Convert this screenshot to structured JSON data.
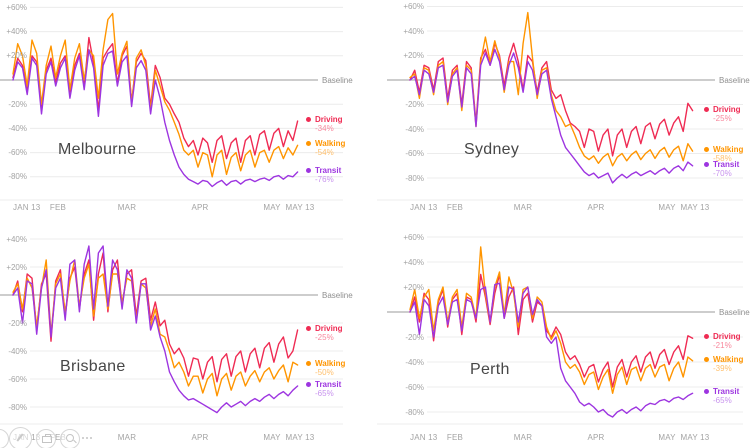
{
  "page": {
    "background": "#ffffff"
  },
  "colors": {
    "driving": "#ef2b53",
    "walking": "#ff9500",
    "transit": "#9d35e0",
    "driving_light": "#f8889d",
    "walking_light": "#ffc06d",
    "transit_light": "#c893ee",
    "baseline_line": "#9b9b9b",
    "gridline": "#ececec",
    "axis_text": "#a3a3a3",
    "city_label": "#474747"
  },
  "icons": {
    "toolbar": [
      "share-icon",
      "print-icon",
      "search-icon",
      "more-icon"
    ]
  },
  "chart_data": [
    {
      "city": "Melbourne",
      "type": "line",
      "x_start": "JAN 13",
      "x_end": "MAY 13",
      "sample_interval_days": 2,
      "ylim": [
        -99,
        63
      ],
      "baseline": 0,
      "baseline_label": "Baseline",
      "y_ticks": [
        {
          "value": 60,
          "label": "+60%"
        },
        {
          "value": 40,
          "label": "+40%"
        },
        {
          "value": 20,
          "label": "+20%"
        },
        {
          "value": -20,
          "label": "-20%"
        },
        {
          "value": -40,
          "label": "-40%"
        },
        {
          "value": -60,
          "label": "-60%"
        },
        {
          "value": -80,
          "label": "-80%"
        }
      ],
      "x_ticks": [
        {
          "day": 0,
          "label": "JAN 13"
        },
        {
          "day": 19,
          "label": "FEB"
        },
        {
          "day": 48,
          "label": "MAR"
        },
        {
          "day": 79,
          "label": "APR"
        },
        {
          "day": 109,
          "label": "MAY"
        },
        {
          "day": 121,
          "label": "MAY 13"
        }
      ],
      "series": [
        {
          "name": "Driving",
          "latest": "-34%",
          "values": [
            2,
            18,
            12,
            -8,
            20,
            15,
            -24,
            8,
            18,
            -2,
            14,
            20,
            -10,
            12,
            22,
            -5,
            35,
            14,
            -25,
            18,
            25,
            30,
            -3,
            20,
            28,
            -18,
            15,
            22,
            16,
            -22,
            12,
            2,
            -15,
            -20,
            -28,
            -35,
            -48,
            -55,
            -50,
            -62,
            -48,
            -52,
            -68,
            -50,
            -46,
            -65,
            -52,
            -48,
            -68,
            -50,
            -46,
            -62,
            -45,
            -42,
            -58,
            -44,
            -40,
            -55,
            -42,
            -50,
            -34
          ]
        },
        {
          "name": "Walking",
          "latest": "-54%",
          "values": [
            5,
            30,
            20,
            -5,
            33,
            22,
            -20,
            12,
            28,
            2,
            20,
            33,
            -8,
            18,
            30,
            0,
            25,
            20,
            -15,
            25,
            50,
            55,
            5,
            22,
            32,
            -20,
            18,
            25,
            12,
            -25,
            8,
            -5,
            -18,
            -25,
            -35,
            -45,
            -58,
            -62,
            -58,
            -72,
            -60,
            -62,
            -80,
            -62,
            -58,
            -78,
            -64,
            -60,
            -75,
            -62,
            -58,
            -72,
            -60,
            -58,
            -68,
            -58,
            -55,
            -65,
            -56,
            -62,
            -54
          ]
        },
        {
          "name": "Transit",
          "latest": "-76%",
          "values": [
            0,
            15,
            10,
            -12,
            18,
            12,
            -28,
            5,
            15,
            -5,
            10,
            18,
            -15,
            8,
            20,
            -8,
            25,
            10,
            -30,
            12,
            22,
            24,
            -5,
            15,
            20,
            -22,
            10,
            16,
            8,
            -28,
            0,
            -15,
            -35,
            -50,
            -62,
            -72,
            -78,
            -82,
            -84,
            -86,
            -83,
            -84,
            -88,
            -85,
            -83,
            -87,
            -84,
            -83,
            -86,
            -83,
            -82,
            -84,
            -82,
            -81,
            -83,
            -80,
            -79,
            -82,
            -79,
            -80,
            -76
          ]
        }
      ]
    },
    {
      "city": "Sydney",
      "type": "line",
      "x_start": "JAN 13",
      "x_end": "MAY 13",
      "sample_interval_days": 2,
      "ylim": [
        -99,
        63
      ],
      "baseline": 0,
      "baseline_label": "Baseline",
      "y_ticks": [
        {
          "value": 60,
          "label": "+60%"
        },
        {
          "value": 40,
          "label": "+40%"
        },
        {
          "value": 20,
          "label": "+20%"
        },
        {
          "value": -20,
          "label": "-20%"
        },
        {
          "value": -40,
          "label": "-40%"
        },
        {
          "value": -60,
          "label": "-60%"
        },
        {
          "value": -80,
          "label": "-80%"
        }
      ],
      "x_ticks": [
        {
          "day": 0,
          "label": "JAN 13"
        },
        {
          "day": 19,
          "label": "FEB"
        },
        {
          "day": 48,
          "label": "MAR"
        },
        {
          "day": 79,
          "label": "APR"
        },
        {
          "day": 109,
          "label": "MAY"
        },
        {
          "day": 121,
          "label": "MAY 13"
        }
      ],
      "series": [
        {
          "name": "Driving",
          "latest": "-25%",
          "values": [
            0,
            8,
            -10,
            12,
            10,
            -8,
            15,
            18,
            -15,
            8,
            12,
            -20,
            15,
            10,
            -35,
            18,
            25,
            12,
            30,
            20,
            -5,
            18,
            30,
            15,
            -8,
            20,
            15,
            -10,
            10,
            15,
            -8,
            -15,
            -12,
            -25,
            -35,
            -38,
            -42,
            -55,
            -40,
            -42,
            -58,
            -45,
            -40,
            -62,
            -45,
            -40,
            -55,
            -42,
            -38,
            -52,
            -38,
            -35,
            -48,
            -36,
            -32,
            -45,
            -35,
            -30,
            -42,
            -19,
            -25
          ]
        },
        {
          "name": "Walking",
          "latest": "-58%",
          "values": [
            2,
            5,
            -15,
            10,
            8,
            -12,
            12,
            15,
            -20,
            5,
            10,
            -25,
            12,
            8,
            -38,
            15,
            35,
            15,
            32,
            18,
            -10,
            15,
            15,
            -12,
            30,
            55,
            18,
            -15,
            8,
            10,
            -12,
            -25,
            -30,
            -38,
            -36,
            -45,
            -55,
            -62,
            -65,
            -62,
            -68,
            -63,
            -60,
            -70,
            -63,
            -60,
            -66,
            -61,
            -58,
            -65,
            -60,
            -57,
            -64,
            -58,
            -55,
            -63,
            -57,
            -54,
            -66,
            -52,
            -58
          ]
        },
        {
          "name": "Transit",
          "latest": "-70%",
          "values": [
            0,
            3,
            -12,
            8,
            5,
            -10,
            10,
            12,
            -18,
            3,
            8,
            -22,
            10,
            5,
            -38,
            12,
            22,
            12,
            25,
            15,
            -8,
            12,
            22,
            10,
            -10,
            15,
            8,
            -12,
            5,
            8,
            -15,
            -30,
            -45,
            -55,
            -60,
            -65,
            -70,
            -75,
            -78,
            -76,
            -80,
            -78,
            -76,
            -84,
            -80,
            -77,
            -80,
            -77,
            -75,
            -78,
            -76,
            -74,
            -77,
            -74,
            -72,
            -76,
            -72,
            -70,
            -74,
            -67,
            -70
          ]
        }
      ]
    },
    {
      "city": "Brisbane",
      "type": "line",
      "x_start": "JAN 13",
      "x_end": "MAY 13",
      "sample_interval_days": 2,
      "ylim": [
        -92,
        45
      ],
      "baseline": 0,
      "baseline_label": "Baseline",
      "y_ticks": [
        {
          "value": 40,
          "label": "+40%"
        },
        {
          "value": 20,
          "label": "+20%"
        },
        {
          "value": -20,
          "label": "-20%"
        },
        {
          "value": -40,
          "label": "-40%"
        },
        {
          "value": -60,
          "label": "-60%"
        },
        {
          "value": -80,
          "label": "-80%"
        }
      ],
      "x_ticks": [
        {
          "day": 0,
          "label": "JAN 13"
        },
        {
          "day": 19,
          "label": "FEB"
        },
        {
          "day": 48,
          "label": "MAR"
        },
        {
          "day": 79,
          "label": "APR"
        },
        {
          "day": 109,
          "label": "MAY"
        },
        {
          "day": 121,
          "label": "MAY 13"
        }
      ],
      "series": [
        {
          "name": "Driving",
          "latest": "-25%",
          "values": [
            0,
            10,
            -12,
            15,
            12,
            -25,
            8,
            15,
            -33,
            10,
            18,
            -15,
            12,
            20,
            -10,
            15,
            25,
            -18,
            15,
            30,
            -12,
            18,
            25,
            -8,
            15,
            18,
            -15,
            10,
            12,
            -18,
            -5,
            -22,
            -18,
            -35,
            -42,
            -38,
            -45,
            -58,
            -45,
            -46,
            -60,
            -48,
            -44,
            -62,
            -46,
            -42,
            -58,
            -44,
            -40,
            -55,
            -42,
            -38,
            -52,
            -38,
            -34,
            -48,
            -35,
            -30,
            -45,
            -40,
            -25
          ]
        },
        {
          "name": "Walking",
          "latest": "-50%",
          "values": [
            2,
            8,
            -10,
            12,
            5,
            -22,
            5,
            25,
            -28,
            8,
            15,
            -12,
            10,
            25,
            -8,
            12,
            22,
            -15,
            12,
            15,
            -10,
            15,
            15,
            -5,
            12,
            10,
            -18,
            8,
            5,
            -22,
            -10,
            -28,
            -30,
            -40,
            -52,
            -48,
            -55,
            -65,
            -58,
            -58,
            -70,
            -60,
            -56,
            -72,
            -60,
            -56,
            -68,
            -58,
            -55,
            -65,
            -58,
            -54,
            -62,
            -55,
            -52,
            -60,
            -54,
            -50,
            -62,
            -48,
            -50
          ]
        },
        {
          "name": "Transit",
          "latest": "-65%",
          "values": [
            0,
            5,
            -20,
            10,
            8,
            -28,
            5,
            18,
            -30,
            5,
            12,
            -18,
            22,
            25,
            -12,
            22,
            35,
            -10,
            30,
            35,
            -8,
            25,
            18,
            -10,
            18,
            12,
            -20,
            8,
            8,
            -25,
            -15,
            -30,
            -40,
            -55,
            -62,
            -68,
            -72,
            -75,
            -74,
            -76,
            -78,
            -80,
            -82,
            -84,
            -80,
            -77,
            -80,
            -78,
            -76,
            -79,
            -76,
            -74,
            -76,
            -73,
            -71,
            -74,
            -71,
            -69,
            -72,
            -68,
            -65
          ]
        }
      ]
    },
    {
      "city": "Perth",
      "type": "line",
      "x_start": "JAN 13",
      "x_end": "MAY 13",
      "sample_interval_days": 2,
      "ylim": [
        -90,
        64
      ],
      "baseline": 0,
      "baseline_label": "Baseline",
      "y_ticks": [
        {
          "value": 60,
          "label": "+60%"
        },
        {
          "value": 40,
          "label": "+40%"
        },
        {
          "value": 20,
          "label": "+20%"
        },
        {
          "value": -20,
          "label": "-20%"
        },
        {
          "value": -40,
          "label": "-40%"
        },
        {
          "value": -60,
          "label": "-60%"
        },
        {
          "value": -80,
          "label": "-80%"
        }
      ],
      "x_ticks": [
        {
          "day": 0,
          "label": "JAN 13"
        },
        {
          "day": 19,
          "label": "FEB"
        },
        {
          "day": 48,
          "label": "MAR"
        },
        {
          "day": 79,
          "label": "APR"
        },
        {
          "day": 109,
          "label": "MAY"
        },
        {
          "day": 121,
          "label": "MAY 13"
        }
      ],
      "series": [
        {
          "name": "Driving",
          "latest": "-21%",
          "values": [
            0,
            12,
            -8,
            15,
            10,
            -23,
            8,
            18,
            -12,
            10,
            15,
            -18,
            12,
            10,
            -8,
            30,
            12,
            -10,
            15,
            30,
            -5,
            12,
            20,
            -18,
            10,
            15,
            -8,
            8,
            5,
            -15,
            -20,
            -12,
            -18,
            -32,
            -38,
            -35,
            -42,
            -52,
            -44,
            -42,
            -56,
            -46,
            -40,
            -60,
            -44,
            -38,
            -52,
            -40,
            -35,
            -48,
            -36,
            -32,
            -45,
            -34,
            -30,
            -42,
            -32,
            -27,
            -38,
            -19,
            -21
          ]
        },
        {
          "name": "Walking",
          "latest": "-39%",
          "values": [
            2,
            18,
            -5,
            12,
            18,
            -15,
            10,
            20,
            -8,
            12,
            18,
            -12,
            15,
            12,
            -5,
            52,
            15,
            -8,
            20,
            32,
            -2,
            28,
            15,
            -12,
            18,
            20,
            -5,
            12,
            8,
            -12,
            -22,
            -15,
            -25,
            -40,
            -45,
            -42,
            -48,
            -58,
            -50,
            -48,
            -62,
            -52,
            -46,
            -65,
            -50,
            -44,
            -58,
            -46,
            -44,
            -55,
            -45,
            -42,
            -52,
            -44,
            -42,
            -55,
            -45,
            -40,
            -52,
            -36,
            -39
          ]
        },
        {
          "name": "Transit",
          "latest": "-65%",
          "values": [
            0,
            8,
            -18,
            10,
            5,
            -20,
            5,
            12,
            -10,
            8,
            10,
            -15,
            10,
            8,
            -5,
            18,
            20,
            -8,
            22,
            23,
            -5,
            20,
            18,
            -8,
            15,
            20,
            -2,
            10,
            5,
            -20,
            -25,
            -20,
            -45,
            -55,
            -60,
            -65,
            -72,
            -75,
            -73,
            -76,
            -80,
            -78,
            -82,
            -84,
            -80,
            -78,
            -81,
            -78,
            -76,
            -79,
            -75,
            -73,
            -74,
            -71,
            -70,
            -72,
            -69,
            -68,
            -70,
            -67,
            -65
          ]
        }
      ]
    }
  ]
}
